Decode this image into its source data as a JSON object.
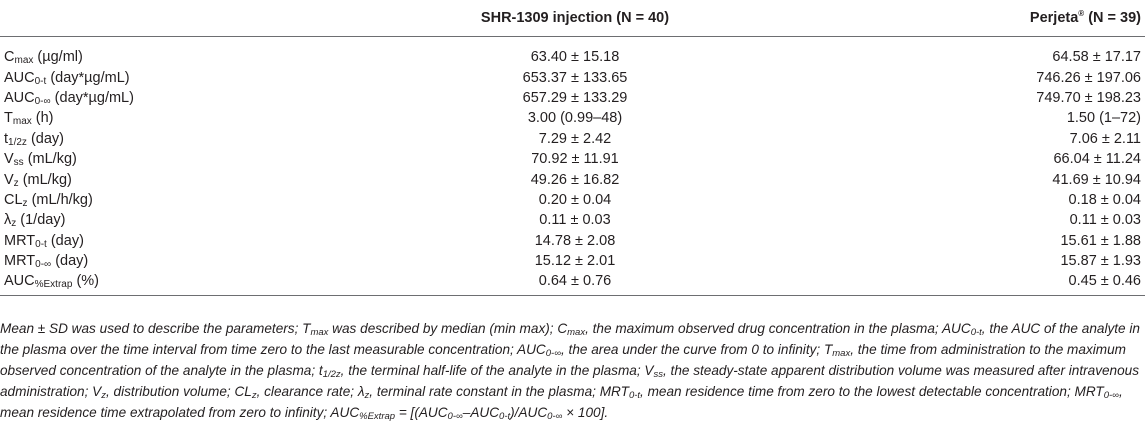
{
  "table": {
    "headers": {
      "parameter": "",
      "col1": "SHR-1309 injection (N = 40)",
      "col2_main": "Perjeta",
      "col2_sup": "®",
      "col2_rest": " (N = 39)"
    },
    "rows": [
      {
        "base": "C",
        "sub": "max",
        "rest": " (µg/ml)",
        "v1": "63.40 ± 15.18",
        "v2": "64.58 ± 17.17"
      },
      {
        "base": "AUC",
        "sub": "0-t",
        "rest": " (day*µg/mL)",
        "v1": "653.37 ± 133.65",
        "v2": "746.26 ± 197.06"
      },
      {
        "base": "AUC",
        "sub": "0-∞",
        "rest": " (day*µg/mL)",
        "v1": "657.29 ± 133.29",
        "v2": "749.70 ± 198.23"
      },
      {
        "base": "T",
        "sub": "max",
        "rest": " (h)",
        "v1": "3.00 (0.99–48)",
        "v2": "1.50 (1–72)"
      },
      {
        "base": "t",
        "sub": "1/2z",
        "rest": " (day)",
        "v1": "7.29 ± 2.42",
        "v2": "7.06 ± 2.11"
      },
      {
        "base": "V",
        "sub": "ss",
        "rest": " (mL/kg)",
        "v1": "70.92 ± 11.91",
        "v2": "66.04 ± 11.24"
      },
      {
        "base": "V",
        "sub": "z",
        "rest": " (mL/kg)",
        "v1": "49.26 ± 16.82",
        "v2": "41.69 ± 10.94"
      },
      {
        "base": "CL",
        "sub": "z",
        "rest": " (mL/h/kg)",
        "v1": "0.20 ± 0.04",
        "v2": "0.18 ± 0.04"
      },
      {
        "base": "λ",
        "sub": "z",
        "rest": " (1/day)",
        "v1": "0.11 ± 0.03",
        "v2": "0.11 ± 0.03"
      },
      {
        "base": "MRT",
        "sub": "0-t",
        "rest": " (day)",
        "v1": "14.78 ± 2.08",
        "v2": "15.61 ± 1.88"
      },
      {
        "base": "MRT",
        "sub": "0-∞",
        "rest": " (day)",
        "v1": "15.12 ± 2.01",
        "v2": "15.87 ± 1.93"
      },
      {
        "base": "AUC",
        "sub": "%Extrap",
        "rest": " (%)",
        "v1": "0.64 ± 0.76",
        "v2": "0.45 ± 0.46"
      }
    ]
  },
  "footnote": [
    {
      "t": "Mean ± SD was used to describe the parameters; T"
    },
    {
      "s": "max"
    },
    {
      "t": " was described by median (min max); C"
    },
    {
      "s": "max"
    },
    {
      "t": ", the maximum observed drug concentration in the plasma; AUC"
    },
    {
      "s": "0-t"
    },
    {
      "t": ", the AUC of the analyte in the plasma over the time interval from time zero to the last measurable concentration; AUC"
    },
    {
      "s": "0-∞"
    },
    {
      "t": ", the area under the curve from 0 to infinity; T"
    },
    {
      "s": "max"
    },
    {
      "t": ", the time from administration to the maximum observed concentration of the analyte in the plasma; t"
    },
    {
      "s": "1/2z"
    },
    {
      "t": ", the terminal half-life of the analyte in the plasma; V"
    },
    {
      "s": "ss"
    },
    {
      "t": ", the steady-state apparent distribution volume was measured after intravenous administration; V"
    },
    {
      "s": "z"
    },
    {
      "t": ", distribution volume; CL"
    },
    {
      "s": "z"
    },
    {
      "t": ", clearance rate; λ"
    },
    {
      "s": "z"
    },
    {
      "t": ", terminal rate constant in the plasma; MRT"
    },
    {
      "s": "0-t"
    },
    {
      "t": ", mean residence time from zero to the lowest detectable concentration; MRT"
    },
    {
      "s": "0-∞"
    },
    {
      "t": ", mean residence time extrapolated from zero to infinity; AUC"
    },
    {
      "s": "%Extrap"
    },
    {
      "t": " = [(AUC"
    },
    {
      "s": "0-∞"
    },
    {
      "t": "–AUC"
    },
    {
      "s": "0-t"
    },
    {
      "t": ")/AUC"
    },
    {
      "s": "0-∞"
    },
    {
      "t": " × 100]."
    }
  ]
}
